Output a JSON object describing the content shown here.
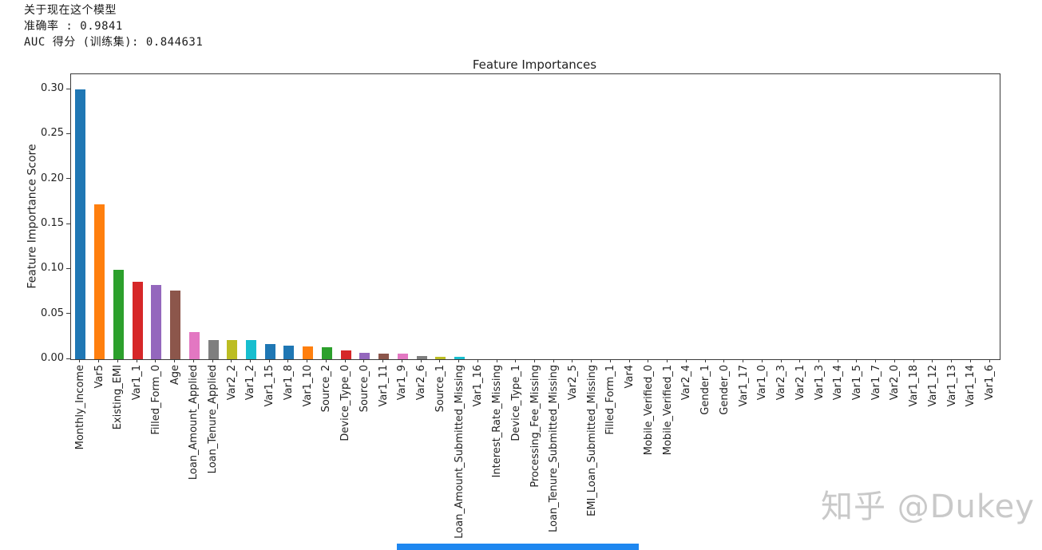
{
  "header": {
    "line1": "关于现在这个模型",
    "line2": "准确率 : 0.9841",
    "line3": "AUC 得分 (训练集): 0.844631"
  },
  "watermark": {
    "text": "知乎 @Dukey",
    "color": "#c9c9c9"
  },
  "bottom_strip": {
    "color": "#1e87f0"
  },
  "chart_data": {
    "type": "bar",
    "title": "Feature Importances",
    "xlabel": "",
    "ylabel": "Feature Importance Score",
    "ylim": [
      0,
      0.3168
    ],
    "yticks": [
      0.0,
      0.05,
      0.1,
      0.15,
      0.2,
      0.25,
      0.3
    ],
    "grid": false,
    "legend": false,
    "categories": [
      "Monthly_Income",
      "Var5",
      "Existing_EMI",
      "Var1_1",
      "Filled_Form_0",
      "Age",
      "Loan_Amount_Applied",
      "Loan_Tenure_Applied",
      "Var2_2",
      "Var1_2",
      "Var1_15",
      "Var1_8",
      "Var1_10",
      "Source_2",
      "Device_Type_0",
      "Source_0",
      "Var1_11",
      "Var1_9",
      "Var2_6",
      "Source_1",
      "Loan_Amount_Submitted_Missing",
      "Var1_16",
      "Interest_Rate_Missing",
      "Device_Type_1",
      "Processing_Fee_Missing",
      "Loan_Tenure_Submitted_Missing",
      "Var2_5",
      "EMI_Loan_Submitted_Missing",
      "Filled_Form_1",
      "Var4",
      "Mobile_Verified_0",
      "Mobile_Verified_1",
      "Var2_4",
      "Gender_1",
      "Gender_0",
      "Var1_17",
      "Var1_0",
      "Var2_3",
      "Var2_1",
      "Var1_3",
      "Var1_4",
      "Var1_5",
      "Var1_7",
      "Var2_0",
      "Var1_18",
      "Var1_12",
      "Var1_13",
      "Var1_14",
      "Var1_6"
    ],
    "values": [
      0.3,
      0.172,
      0.099,
      0.086,
      0.083,
      0.076,
      0.03,
      0.021,
      0.021,
      0.021,
      0.017,
      0.015,
      0.014,
      0.013,
      0.01,
      0.007,
      0.006,
      0.006,
      0.004,
      0.003,
      0.003,
      0,
      0,
      0,
      0,
      0,
      0,
      0,
      0,
      0,
      0,
      0,
      0,
      0,
      0,
      0,
      0,
      0,
      0,
      0,
      0,
      0,
      0,
      0,
      0,
      0,
      0,
      0,
      0
    ],
    "bar_colors": [
      "#1f77b4",
      "#ff7f0e",
      "#2ca02c",
      "#d62728",
      "#9467bd",
      "#8c564b",
      "#e377c2",
      "#7f7f7f",
      "#bcbd22",
      "#17becf",
      "#1f77b4",
      "#1f77b4",
      "#ff7f0e",
      "#2ca02c",
      "#d62728",
      "#9467bd",
      "#8c564b",
      "#e377c2",
      "#7f7f7f",
      "#bcbd22",
      "#17becf",
      "#1f77b4",
      "#ff7f0e",
      "#2ca02c",
      "#d62728",
      "#9467bd",
      "#8c564b",
      "#e377c2",
      "#7f7f7f",
      "#bcbd22",
      "#17becf",
      "#1f77b4",
      "#ff7f0e",
      "#2ca02c",
      "#d62728",
      "#9467bd",
      "#8c564b",
      "#e377c2",
      "#7f7f7f",
      "#bcbd22",
      "#17becf",
      "#1f77b4",
      "#ff7f0e",
      "#2ca02c",
      "#d62728",
      "#9467bd",
      "#8c564b",
      "#e377c2",
      "#7f7f7f"
    ]
  }
}
